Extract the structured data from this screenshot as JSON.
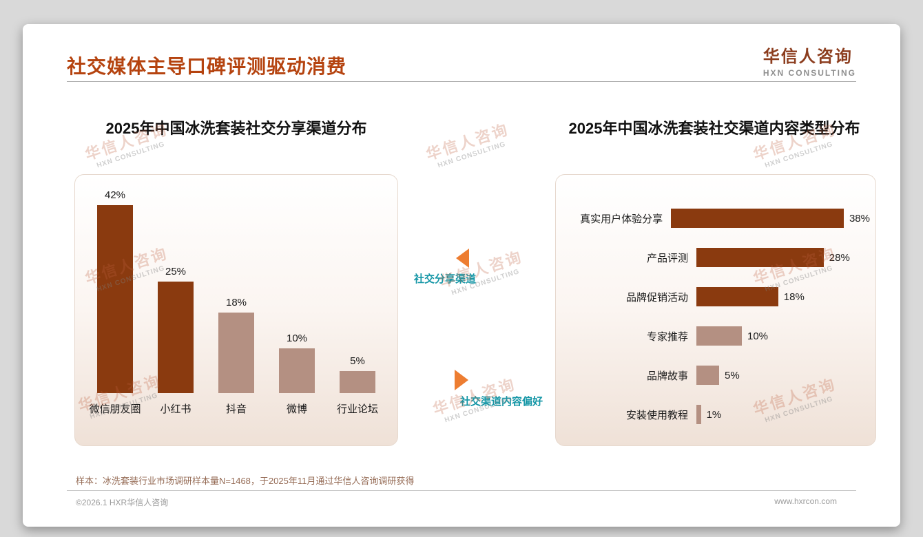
{
  "page": {
    "title": "社交媒体主导口碑评测驱动消费"
  },
  "logo": {
    "name": "华信人咨询",
    "subtitle": "HXN CONSULTING"
  },
  "watermark": {
    "line1": "华信人咨询",
    "line2": "HXN CONSULTING"
  },
  "middle": {
    "top_label": "社交分享渠道",
    "bottom_label": "社交渠道内容偏好"
  },
  "footnote": "样本：冰洗套装行业市场调研样本量N=1468，于2025年11月通过华信人咨询调研获得",
  "footer": {
    "copyright": "©2026.1 HXR华信人咨询",
    "website": "www.hxrcon.com"
  },
  "colors": {
    "accent_title": "#B5430F",
    "bar_dark": "#8A3A0F",
    "bar_light": "#B49082",
    "callout_text": "#1496A6",
    "callout_arrow": "#ED7D31"
  },
  "chart_data": [
    {
      "type": "bar",
      "orientation": "vertical",
      "title": "2025年中国冰洗套装社交分享渠道分布",
      "categories": [
        "微信朋友圈",
        "小红书",
        "抖音",
        "微博",
        "行业论坛"
      ],
      "values": [
        42,
        25,
        18,
        10,
        5
      ],
      "unit": "%",
      "colors": [
        "#8A3A0F",
        "#8A3A0F",
        "#B49082",
        "#B49082",
        "#B49082"
      ],
      "ylim": [
        0,
        45
      ],
      "grid": false,
      "legend": false
    },
    {
      "type": "bar",
      "orientation": "horizontal",
      "title": "2025年中国冰洗套装社交渠道内容类型分布",
      "categories": [
        "真实用户体验分享",
        "产品评测",
        "品牌促销活动",
        "专家推荐",
        "品牌故事",
        "安装使用教程"
      ],
      "values": [
        38,
        28,
        18,
        10,
        5,
        1
      ],
      "unit": "%",
      "colors": [
        "#8A3A0F",
        "#8A3A0F",
        "#8A3A0F",
        "#B49082",
        "#B49082",
        "#B49082"
      ],
      "xlim": [
        0,
        40
      ],
      "grid": false,
      "legend": false
    }
  ]
}
